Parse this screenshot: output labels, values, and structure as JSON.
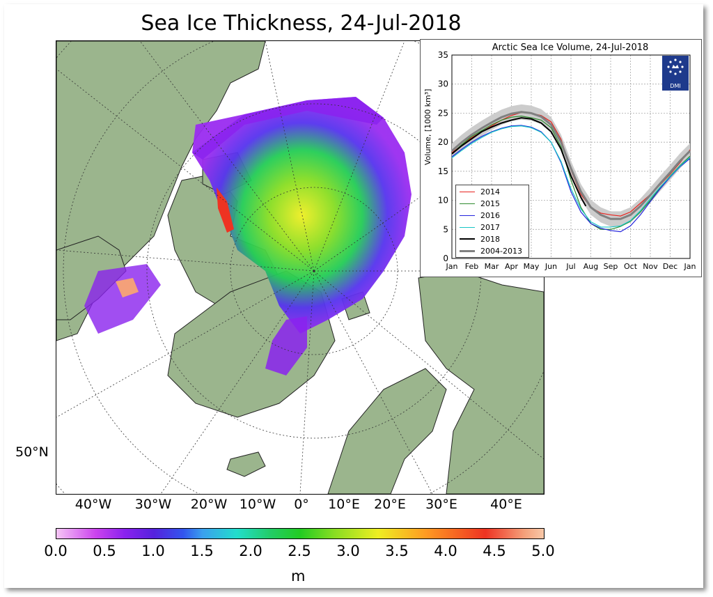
{
  "title": "Sea Ice Thickness, 24-Jul-2018",
  "map": {
    "lat_label": "50°N",
    "lon_labels": [
      "40°W",
      "30°W",
      "20°W",
      "10°W",
      "0°",
      "10°E",
      "20°E",
      "30°E",
      "40°E"
    ],
    "land_color": "#9bb58d",
    "ocean_color": "#ffffff"
  },
  "colorbar": {
    "ticks": [
      "0.0",
      "0.5",
      "1.0",
      "1.5",
      "2.0",
      "2.5",
      "3.0",
      "3.5",
      "4.0",
      "4.5",
      "5.0"
    ],
    "unit": "m",
    "range": [
      0.0,
      5.0
    ]
  },
  "chart_data": {
    "type": "line",
    "title": "Arctic Sea Ice Volume, 24-Jul-2018",
    "ylabel": "Volume, [1000 km³]",
    "ylim": [
      0,
      35
    ],
    "y_ticks": [
      0,
      5,
      10,
      15,
      20,
      25,
      30,
      35
    ],
    "x_ticks": [
      "Jan",
      "Feb",
      "Mar",
      "Apr",
      "May",
      "Jun",
      "Jul",
      "Aug",
      "Sep",
      "Oct",
      "Nov",
      "Dec",
      "Jan"
    ],
    "grid": true,
    "legend_position": "bottom-left",
    "logo_text": "DMI",
    "series": [
      {
        "name": "2014",
        "color": "#e8231e",
        "x": [
          0,
          0.5,
          1,
          1.5,
          2,
          2.5,
          3,
          3.5,
          4,
          4.5,
          5,
          5.5,
          6,
          6.5,
          7,
          7.5,
          8,
          8.5,
          9,
          9.5,
          10,
          10.5,
          11,
          11.5,
          12
        ],
        "values": [
          18.2,
          19.5,
          20.8,
          21.8,
          22.8,
          23.8,
          24.6,
          25.1,
          25.0,
          24.6,
          23.5,
          20.5,
          15.2,
          11.0,
          8.8,
          7.8,
          7.5,
          7.3,
          8.0,
          9.5,
          11.0,
          12.7,
          14.5,
          16.5,
          18.7
        ]
      },
      {
        "name": "2015",
        "color": "#2e8b2e",
        "x": [
          0,
          0.5,
          1,
          1.5,
          2,
          2.5,
          3,
          3.5,
          4,
          4.5,
          5,
          5.5,
          6,
          6.5,
          7,
          7.5,
          8,
          8.5,
          9,
          9.5,
          10,
          10.5,
          11,
          11.5,
          12
        ],
        "values": [
          18.0,
          19.6,
          21.0,
          22.0,
          23.0,
          23.8,
          24.3,
          24.5,
          24.2,
          23.8,
          22.5,
          19.2,
          13.5,
          8.8,
          6.0,
          5.0,
          5.0,
          5.5,
          6.4,
          8.0,
          10.0,
          12.2,
          14.2,
          16.0,
          17.6
        ]
      },
      {
        "name": "2016",
        "color": "#2323dd",
        "x": [
          0,
          0.5,
          1,
          1.5,
          2,
          2.5,
          3,
          3.5,
          4,
          4.5,
          5,
          5.5,
          6,
          6.5,
          7,
          7.5,
          8,
          8.5,
          9,
          9.5,
          10,
          10.5,
          11,
          11.5,
          12
        ],
        "values": [
          17.5,
          18.8,
          20.0,
          21.0,
          21.8,
          22.4,
          22.8,
          22.9,
          22.6,
          21.8,
          20.0,
          16.5,
          11.5,
          8.0,
          6.0,
          5.2,
          4.8,
          4.6,
          5.6,
          7.5,
          9.8,
          12.0,
          14.0,
          15.8,
          17.2
        ]
      },
      {
        "name": "2017",
        "color": "#17c5c5",
        "x": [
          0,
          0.5,
          1,
          1.5,
          2,
          2.5,
          3,
          3.5,
          4,
          4.5,
          5,
          5.5,
          6,
          6.5,
          7,
          7.5,
          8,
          8.5,
          9,
          9.5,
          10,
          10.5,
          11,
          11.5,
          12
        ],
        "values": [
          17.3,
          18.6,
          19.8,
          20.8,
          21.7,
          22.3,
          22.7,
          22.8,
          22.5,
          21.7,
          20.0,
          16.7,
          12.0,
          8.5,
          6.3,
          5.4,
          5.4,
          5.6,
          6.5,
          8.2,
          10.3,
          12.3,
          14.1,
          15.9,
          17.4
        ]
      },
      {
        "name": "2018",
        "color": "#000000",
        "x": [
          0,
          0.5,
          1,
          1.5,
          2,
          2.5,
          3,
          3.5,
          4,
          4.5,
          5,
          5.5,
          6,
          6.5,
          6.75
        ],
        "values": [
          18.0,
          19.4,
          20.6,
          21.8,
          22.6,
          23.3,
          23.8,
          24.2,
          24.0,
          23.3,
          21.8,
          18.8,
          14.2,
          10.5,
          9.0
        ]
      },
      {
        "name": "2004-2013",
        "color": "#808080",
        "x": [
          0,
          0.5,
          1,
          1.5,
          2,
          2.5,
          3,
          3.5,
          4,
          4.5,
          5,
          5.5,
          6,
          6.5,
          7,
          7.5,
          8,
          8.5,
          9,
          9.5,
          10,
          10.5,
          11,
          11.5,
          12
        ],
        "values": [
          18.5,
          20.0,
          21.3,
          22.4,
          23.4,
          24.3,
          24.9,
          25.2,
          25.0,
          24.4,
          23.0,
          20.0,
          15.5,
          11.5,
          8.8,
          7.5,
          6.8,
          6.8,
          7.5,
          9.0,
          10.9,
          12.9,
          14.8,
          16.8,
          18.5
        ]
      }
    ]
  }
}
